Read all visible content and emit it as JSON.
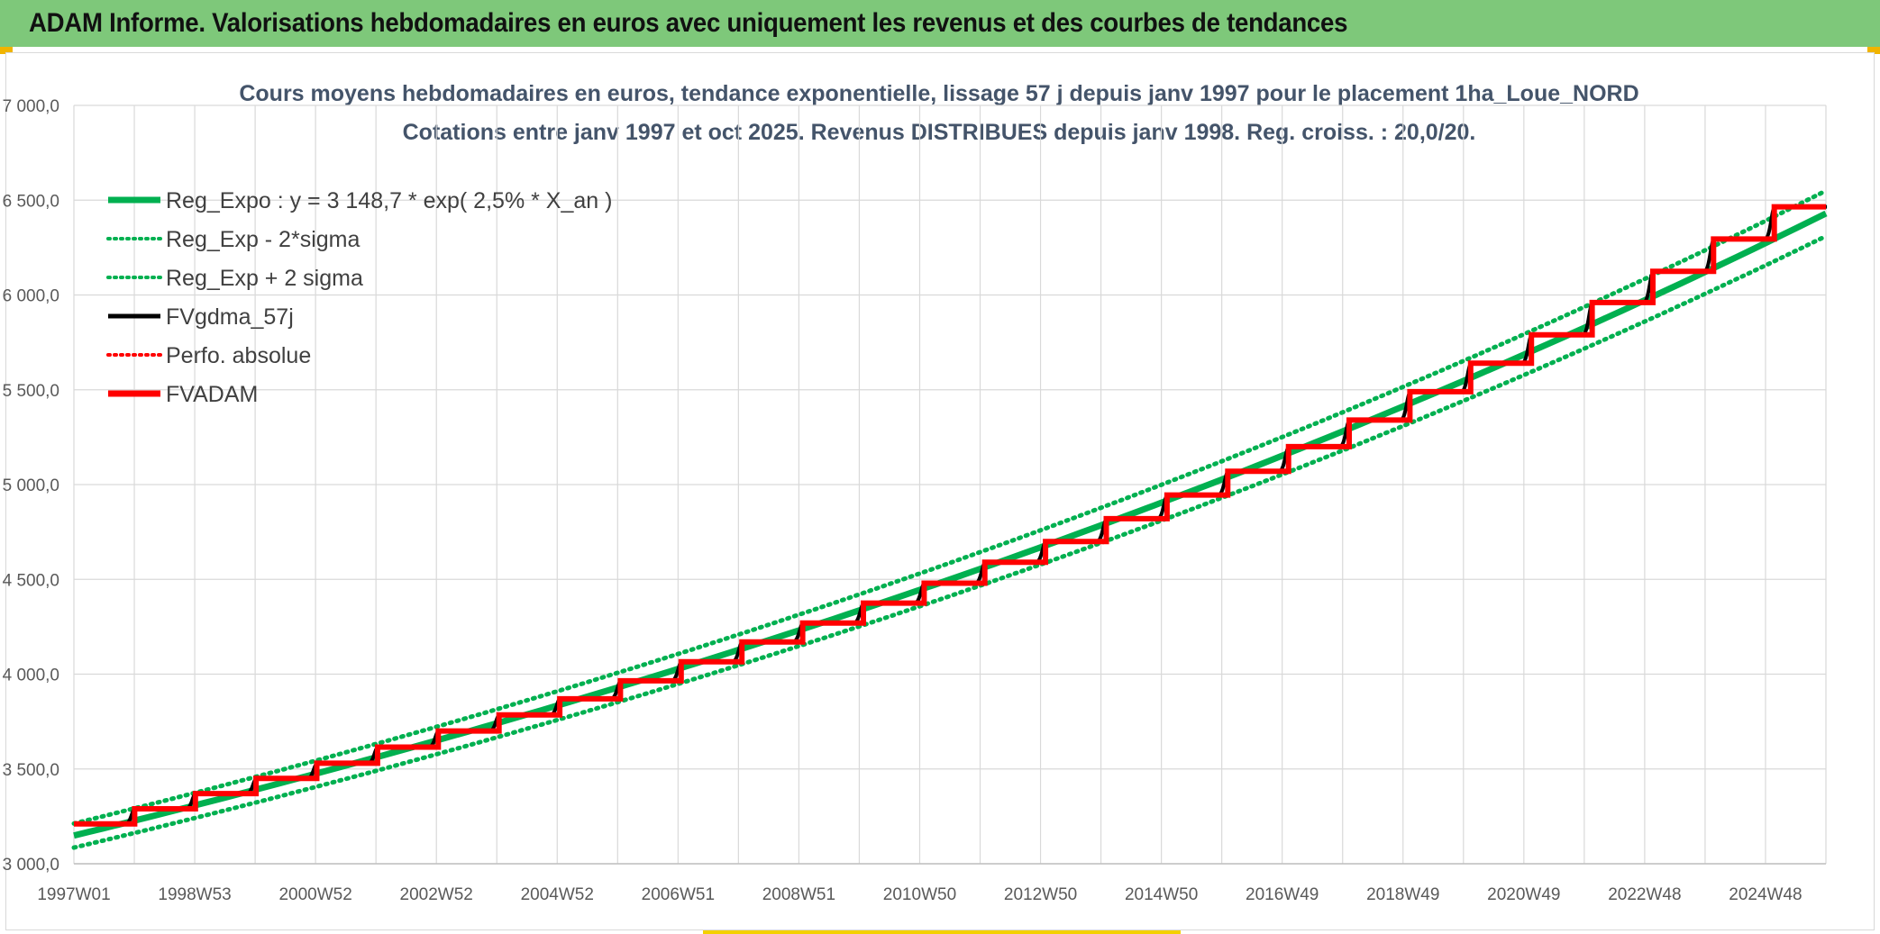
{
  "banner": {
    "title": "ADAM Informe. Valorisations hebdomadaires en euros avec uniquement les revenus et des courbes de tendances"
  },
  "colors": {
    "banner_bg": "#7ec87a",
    "reg_expo": "#00b050",
    "fvgdma": "#000000",
    "fvadam": "#ff0000",
    "perfo": "#ff0000",
    "gridline": "#d9d9d9"
  },
  "chart_data": {
    "type": "line",
    "title_line1": "Cours moyens hebdomadaires en euros, tendance exponentielle, lissage 57 j depuis janv 1997 pour le placement 1ha_Loue_NORD",
    "title_line2": "Cotations entre janv 1997 et oct 2025. Revenus DISTRIBUES depuis janv 1998. Reg. croiss. : 20,0/20.",
    "xlabel": "",
    "ylabel": "",
    "ylim": [
      3000,
      7000
    ],
    "xlim": [
      1997.0,
      2025.85
    ],
    "y_ticks": [
      "3 000,0",
      "3 500,0",
      "4 000,0",
      "4 500,0",
      "5 000,0",
      "5 500,0",
      "6 000,0",
      "6 500,0",
      "7 000,0"
    ],
    "y_tick_values": [
      3000,
      3500,
      4000,
      4500,
      5000,
      5500,
      6000,
      6500,
      7000
    ],
    "x_ticks": [
      "1997W01",
      "1998W53",
      "2000W52",
      "2002W52",
      "2004W52",
      "2006W51",
      "2008W51",
      "2010W50",
      "2012W50",
      "2014W50",
      "2016W49",
      "2018W49",
      "2020W49",
      "2022W48",
      "2024W48"
    ],
    "grid": true,
    "legend_position": "top-left",
    "legend": [
      {
        "label": "Reg_Expo : y = 3 148,7 * exp( 2,5% *  X_an )",
        "style": "solid-thick",
        "color": "#00b050"
      },
      {
        "label": "Reg_Exp - 2*sigma",
        "style": "dotted",
        "color": "#00b050"
      },
      {
        "label": "Reg_Exp + 2 sigma",
        "style": "dotted",
        "color": "#00b050"
      },
      {
        "label": "FVgdma_57j",
        "style": "solid",
        "color": "#000000"
      },
      {
        "label": "Perfo. absolue",
        "style": "dotted",
        "color": "#ff0000"
      },
      {
        "label": "FVADAM",
        "style": "solid-thick",
        "color": "#ff0000"
      }
    ],
    "series": [
      {
        "name": "Reg_Expo : y = 3 148,7 * exp( 2,5% *  X_an )",
        "x": [
          1997.0,
          2025.85
        ],
        "y": [
          3148.7,
          6430
        ]
      },
      {
        "name": "Reg_Exp - 2*sigma",
        "x": [
          1997.0,
          2025.85
        ],
        "y": [
          3085,
          6310
        ]
      },
      {
        "name": "Reg_Exp + 2 sigma",
        "x": [
          1997.0,
          2025.85
        ],
        "y": [
          3212,
          6550
        ]
      },
      {
        "name": "FVADAM",
        "step_years": [
          1997.0,
          1998.0,
          1999.0,
          2000.0,
          2001.0,
          2002.0,
          2003.0,
          2004.0,
          2005.0,
          2006.0,
          2007.0,
          2008.0,
          2009.0,
          2010.0,
          2011.0,
          2012.0,
          2013.0,
          2014.0,
          2015.0,
          2016.0,
          2017.0,
          2018.0,
          2019.0,
          2020.0,
          2021.0,
          2022.0,
          2023.0,
          2024.0,
          2025.0,
          2025.85
        ],
        "step_values": [
          3210,
          3290,
          3370,
          3450,
          3530,
          3615,
          3700,
          3785,
          3870,
          3965,
          4065,
          4170,
          4270,
          4375,
          4480,
          4590,
          4700,
          4820,
          4945,
          5070,
          5200,
          5340,
          5490,
          5640,
          5790,
          5960,
          6125,
          6295,
          6465,
          6465
        ]
      },
      {
        "name": "FVgdma_57j",
        "note_style": "smoothed version of FVADAM steps",
        "step_years": [
          1997.0,
          1998.0,
          1999.0,
          2000.0,
          2001.0,
          2002.0,
          2003.0,
          2004.0,
          2005.0,
          2006.0,
          2007.0,
          2008.0,
          2009.0,
          2010.0,
          2011.0,
          2012.0,
          2013.0,
          2014.0,
          2015.0,
          2016.0,
          2017.0,
          2018.0,
          2019.0,
          2020.0,
          2021.0,
          2022.0,
          2023.0,
          2024.0,
          2025.0,
          2025.85
        ],
        "step_values": [
          3210,
          3290,
          3370,
          3450,
          3530,
          3615,
          3700,
          3785,
          3870,
          3965,
          4065,
          4170,
          4270,
          4375,
          4480,
          4590,
          4700,
          4820,
          4945,
          5070,
          5200,
          5340,
          5490,
          5640,
          5790,
          5960,
          6125,
          6295,
          6465,
          6465
        ]
      }
    ]
  }
}
